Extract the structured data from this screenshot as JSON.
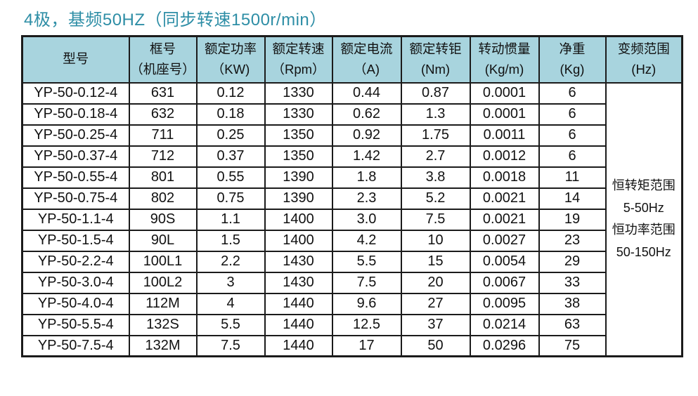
{
  "title": "4极，基频50HZ（同步转速1500r/min）",
  "colors": {
    "title_color": "#2e8ea6",
    "header_bg": "#a8d4de",
    "border_color": "#1b1b1b"
  },
  "table": {
    "headers": [
      [
        "型号"
      ],
      [
        "框号",
        "（机座号）"
      ],
      [
        "额定功率",
        "（KW)"
      ],
      [
        "额定转速",
        "（Rpm）"
      ],
      [
        "额定电流",
        "（A)"
      ],
      [
        "额定转钜",
        "(Nm)"
      ],
      [
        "转动惯量",
        "(Kg/m)"
      ],
      [
        "净重",
        "(Kg)"
      ],
      [
        "变频范围",
        "(Hz)"
      ]
    ],
    "rows": [
      [
        "YP-50-0.12-4",
        "631",
        "0.12",
        "1330",
        "0.44",
        "0.87",
        "0.0001",
        "6"
      ],
      [
        "YP-50-0.18-4",
        "632",
        "0.18",
        "1330",
        "0.62",
        "1.3",
        "0.0001",
        "6"
      ],
      [
        "YP-50-0.25-4",
        "711",
        "0.25",
        "1350",
        "0.92",
        "1.75",
        "0.0011",
        "6"
      ],
      [
        "YP-50-0.37-4",
        "712",
        "0.37",
        "1350",
        "1.42",
        "2.7",
        "0.0012",
        "6"
      ],
      [
        "YP-50-0.55-4",
        "801",
        "0.55",
        "1390",
        "1.8",
        "3.8",
        "0.0018",
        "11"
      ],
      [
        "YP-50-0.75-4",
        "802",
        "0.75",
        "1390",
        "2.3",
        "5.2",
        "0.0021",
        "14"
      ],
      [
        "YP-50-1.1-4",
        "90S",
        "1.1",
        "1400",
        "3.0",
        "7.5",
        "0.0021",
        "19"
      ],
      [
        "YP-50-1.5-4",
        "90L",
        "1.5",
        "1400",
        "4.2",
        "10",
        "0.0027",
        "23"
      ],
      [
        "YP-50-2.2-4",
        "100L1",
        "2.2",
        "1430",
        "5.5",
        "15",
        "0.0054",
        "29"
      ],
      [
        "YP-50-3.0-4",
        "100L2",
        "3",
        "1430",
        "7.5",
        "20",
        "0.0067",
        "33"
      ],
      [
        "YP-50-4.0-4",
        "112M",
        "4",
        "1440",
        "9.6",
        "27",
        "0.0095",
        "38"
      ],
      [
        "YP-50-5.5-4",
        "132S",
        "5.5",
        "1440",
        "12.5",
        "37",
        "0.0214",
        "63"
      ],
      [
        "YP-50-7.5-4",
        "132M",
        "7.5",
        "1440",
        "17",
        "50",
        "0.0296",
        "75"
      ]
    ],
    "freq_range_lines": [
      "恒转矩范围",
      "5-50Hz",
      "恒功率范围",
      "50-150Hz"
    ]
  }
}
